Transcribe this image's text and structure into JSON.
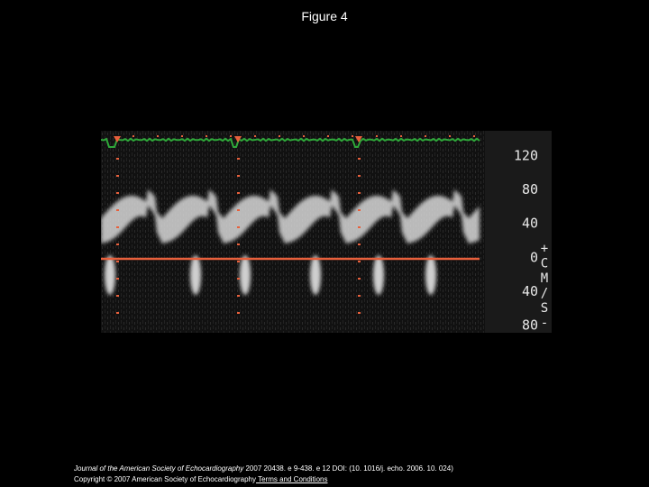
{
  "header": {
    "title": "Figure 4"
  },
  "figure": {
    "scale_labels": [
      "120",
      "80",
      "40",
      "0",
      "40",
      "80"
    ],
    "scale_unit": [
      "+",
      "C",
      "M",
      "/",
      "S",
      "-"
    ]
  },
  "citation": {
    "journal": "Journal of the American Society of Echocardiography",
    "reference": " 2007 20438. e 9-438. e 12 DOI: (10. 1016/j. echo. 2006. 10. 024)",
    "copyright": "Copyright © 2007 American Society of Echocardiography",
    "terms_link": " Terms and Conditions"
  }
}
